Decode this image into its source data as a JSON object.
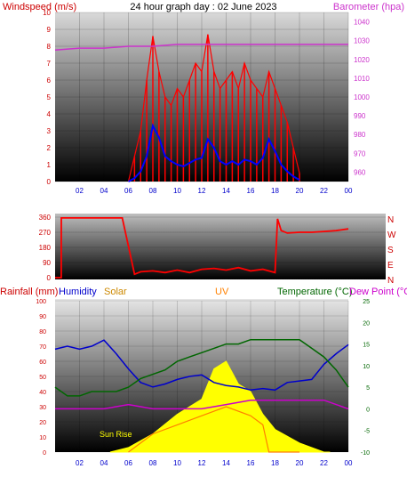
{
  "header": {
    "title": "24 hour graph day : 02 June 2023",
    "left_label": "Windspeed (m/s)",
    "right_label": "Barometer (hpa)"
  },
  "bottom_header": {
    "rainfall": "Rainfall (mm)",
    "humidity": "Humidity",
    "solar": "Solar",
    "uv": "UV",
    "temperature": "Temperature (°C)",
    "dewpoint": "Dew Point (°C)"
  },
  "annotation": "Sun Rise",
  "colors": {
    "wind_gust": "#ff0000",
    "wind_avg": "#0000ff",
    "barometer": "#cc33cc",
    "direction": "#ff0000",
    "humidity": "#0000cc",
    "solar": "#ffff00",
    "uv": "#ff8000",
    "temperature": "#006600",
    "dewpoint": "#cc00cc",
    "rain": "#cc0000"
  },
  "chart_data": [
    {
      "type": "line",
      "name": "wind",
      "x_ticks": [
        "02",
        "04",
        "06",
        "08",
        "10",
        "12",
        "14",
        "16",
        "18",
        "20",
        "22",
        "00"
      ],
      "ylim_left": [
        0,
        10
      ],
      "yticks_left": [
        "0",
        "1",
        "2",
        "3",
        "4",
        "5",
        "6",
        "7",
        "8",
        "9",
        "10"
      ],
      "ylim_right": [
        955,
        1045
      ],
      "yticks_right": [
        "960",
        "970",
        "980",
        "990",
        "1000",
        "1010",
        "1020",
        "1030",
        "1040"
      ],
      "series": [
        {
          "name": "gust",
          "x": [
            6.0,
            6.5,
            7.0,
            7.5,
            8.0,
            8.5,
            9.0,
            9.5,
            10.0,
            10.5,
            11.0,
            11.5,
            12.0,
            12.5,
            13.0,
            13.5,
            14.0,
            14.5,
            15.0,
            15.5,
            16.0,
            16.5,
            17.0,
            17.5,
            18.0,
            18.5,
            19.0,
            19.5,
            20.0
          ],
          "values": [
            0.0,
            1.5,
            3.0,
            6.0,
            8.6,
            6.5,
            5.0,
            4.5,
            5.5,
            5.0,
            6.0,
            7.0,
            6.5,
            8.7,
            6.5,
            5.5,
            6.0,
            6.5,
            5.5,
            7.0,
            6.0,
            5.5,
            5.0,
            6.5,
            5.5,
            4.5,
            3.5,
            2.0,
            0.5
          ]
        },
        {
          "name": "average",
          "x": [
            6.0,
            6.5,
            7.0,
            7.5,
            8.0,
            8.5,
            9.0,
            9.5,
            10.0,
            10.5,
            11.0,
            11.5,
            12.0,
            12.5,
            13.0,
            13.5,
            14.0,
            14.5,
            15.0,
            15.5,
            16.0,
            16.5,
            17.0,
            17.5,
            18.0,
            18.5,
            19.0,
            19.5,
            20.0
          ],
          "values": [
            0.0,
            0.2,
            0.6,
            1.5,
            3.3,
            2.6,
            1.5,
            1.2,
            1.0,
            0.9,
            1.1,
            1.3,
            1.4,
            2.5,
            2.0,
            1.2,
            1.0,
            1.2,
            1.0,
            1.3,
            1.2,
            1.0,
            1.4,
            2.5,
            1.8,
            1.0,
            0.6,
            0.3,
            0.1
          ]
        },
        {
          "name": "barometer",
          "x": [
            0,
            2,
            4,
            6,
            8,
            10,
            12,
            14,
            16,
            18,
            20,
            22,
            24
          ],
          "values": [
            1025,
            1026,
            1026,
            1027,
            1027,
            1028,
            1028,
            1028,
            1028,
            1028,
            1028,
            1028,
            1028
          ]
        }
      ]
    },
    {
      "type": "line",
      "name": "direction",
      "yticks_left": [
        "0",
        "90",
        "180",
        "270",
        "360"
      ],
      "yticks_right": [
        "N",
        "E",
        "S",
        "W",
        "N"
      ],
      "ylim": [
        0,
        360
      ],
      "series": [
        {
          "name": "wind direction",
          "x": [
            0,
            0.5,
            0.51,
            5.0,
            5.01,
            5.5,
            6.5,
            7.0,
            8.0,
            9.0,
            10.0,
            11.0,
            12.0,
            13.0,
            14.0,
            15.0,
            16.0,
            17.0,
            18.0,
            18.2,
            18.5,
            19.0,
            20.0,
            21.0,
            22.0,
            23.0,
            24.0
          ],
          "values": [
            0,
            0,
            355,
            355,
            355,
            355,
            20,
            35,
            40,
            30,
            45,
            30,
            50,
            55,
            45,
            60,
            40,
            50,
            30,
            350,
            280,
            265,
            270,
            270,
            275,
            280,
            290
          ]
        }
      ]
    },
    {
      "type": "line",
      "name": "weather",
      "ylim_rain": [
        0,
        100
      ],
      "yticks_rain": [
        "0",
        "10",
        "20",
        "30",
        "40",
        "50",
        "60",
        "70",
        "80",
        "90",
        "100"
      ],
      "ylim_temp": [
        -10,
        25
      ],
      "yticks_temp": [
        "-10",
        "-5",
        "0",
        "5",
        "10",
        "15",
        "20",
        "25"
      ],
      "series": [
        {
          "name": "humidity",
          "x": [
            0,
            1,
            2,
            3,
            4,
            5,
            6,
            7,
            8,
            9,
            10,
            11,
            12,
            13,
            14,
            15,
            16,
            17,
            18,
            19,
            20,
            21,
            22,
            23,
            24
          ],
          "values": [
            68,
            70,
            68,
            70,
            74,
            65,
            55,
            46,
            43,
            45,
            48,
            50,
            51,
            46,
            44,
            43,
            41,
            42,
            41,
            46,
            47,
            48,
            58,
            65,
            71
          ]
        },
        {
          "name": "temperature",
          "x": [
            0,
            1,
            2,
            3,
            4,
            5,
            6,
            7,
            8,
            9,
            10,
            11,
            12,
            13,
            14,
            15,
            16,
            17,
            18,
            19,
            20,
            21,
            22,
            23,
            24
          ],
          "values": [
            5,
            3,
            3,
            4,
            4,
            4,
            5,
            7,
            8,
            9,
            11,
            12,
            13,
            14,
            15,
            15,
            16,
            16,
            16,
            16,
            16,
            14,
            12,
            9,
            5
          ]
        },
        {
          "name": "dew point",
          "x": [
            0,
            2,
            4,
            6,
            8,
            10,
            12,
            14,
            16,
            18,
            20,
            22,
            24
          ],
          "values": [
            0,
            0,
            0,
            1,
            0,
            0,
            0,
            1,
            2,
            2,
            2,
            2,
            0
          ]
        },
        {
          "name": "solar",
          "x": [
            4.5,
            6,
            8,
            10,
            12,
            13,
            14,
            15,
            16,
            17,
            18,
            20,
            22,
            22.5
          ],
          "values": [
            0,
            3,
            12,
            25,
            35,
            55,
            60,
            45,
            40,
            25,
            15,
            6,
            0,
            0
          ]
        },
        {
          "name": "uv",
          "x": [
            6,
            8,
            10,
            12,
            14,
            16,
            17,
            17.5,
            18,
            20
          ],
          "values": [
            0,
            2,
            3,
            4,
            5,
            4,
            3,
            0,
            0,
            0
          ]
        }
      ]
    }
  ]
}
